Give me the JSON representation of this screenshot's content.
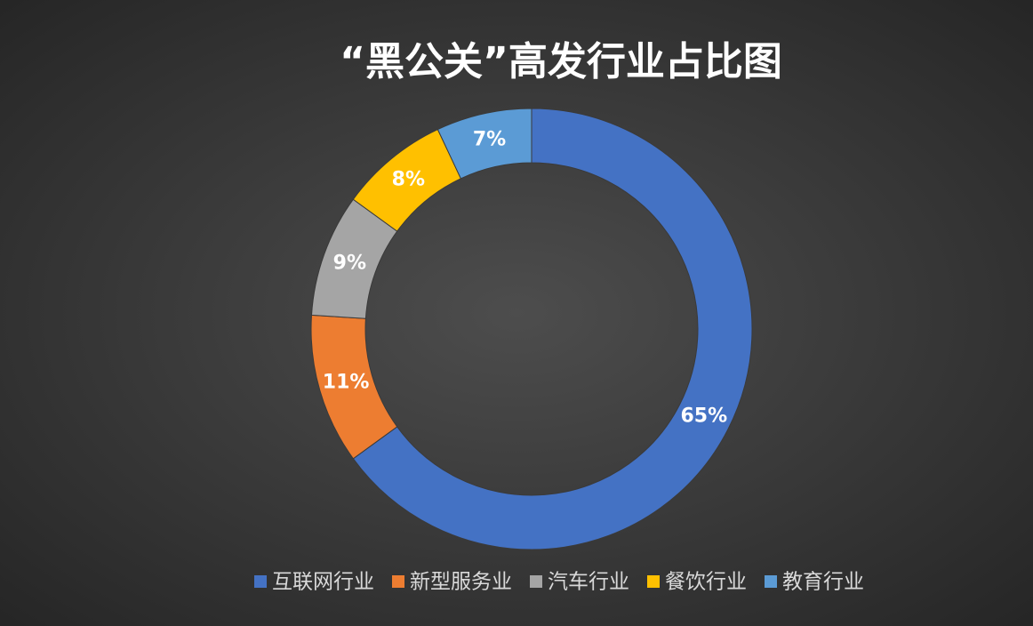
{
  "chart_data": {
    "type": "donut",
    "title": "“黑公关”高发行业占比图",
    "categories": [
      "互联网行业",
      "新型服务业",
      "汽车行业",
      "餐饮行业",
      "教育行业"
    ],
    "values": [
      65,
      11,
      9,
      8,
      7
    ],
    "value_labels": [
      "65%",
      "11%",
      "9%",
      "8%",
      "7%"
    ],
    "colors": [
      "#4472c4",
      "#ed7d31",
      "#a5a5a5",
      "#ffc000",
      "#5b9bd5"
    ],
    "legend": "bottom"
  }
}
